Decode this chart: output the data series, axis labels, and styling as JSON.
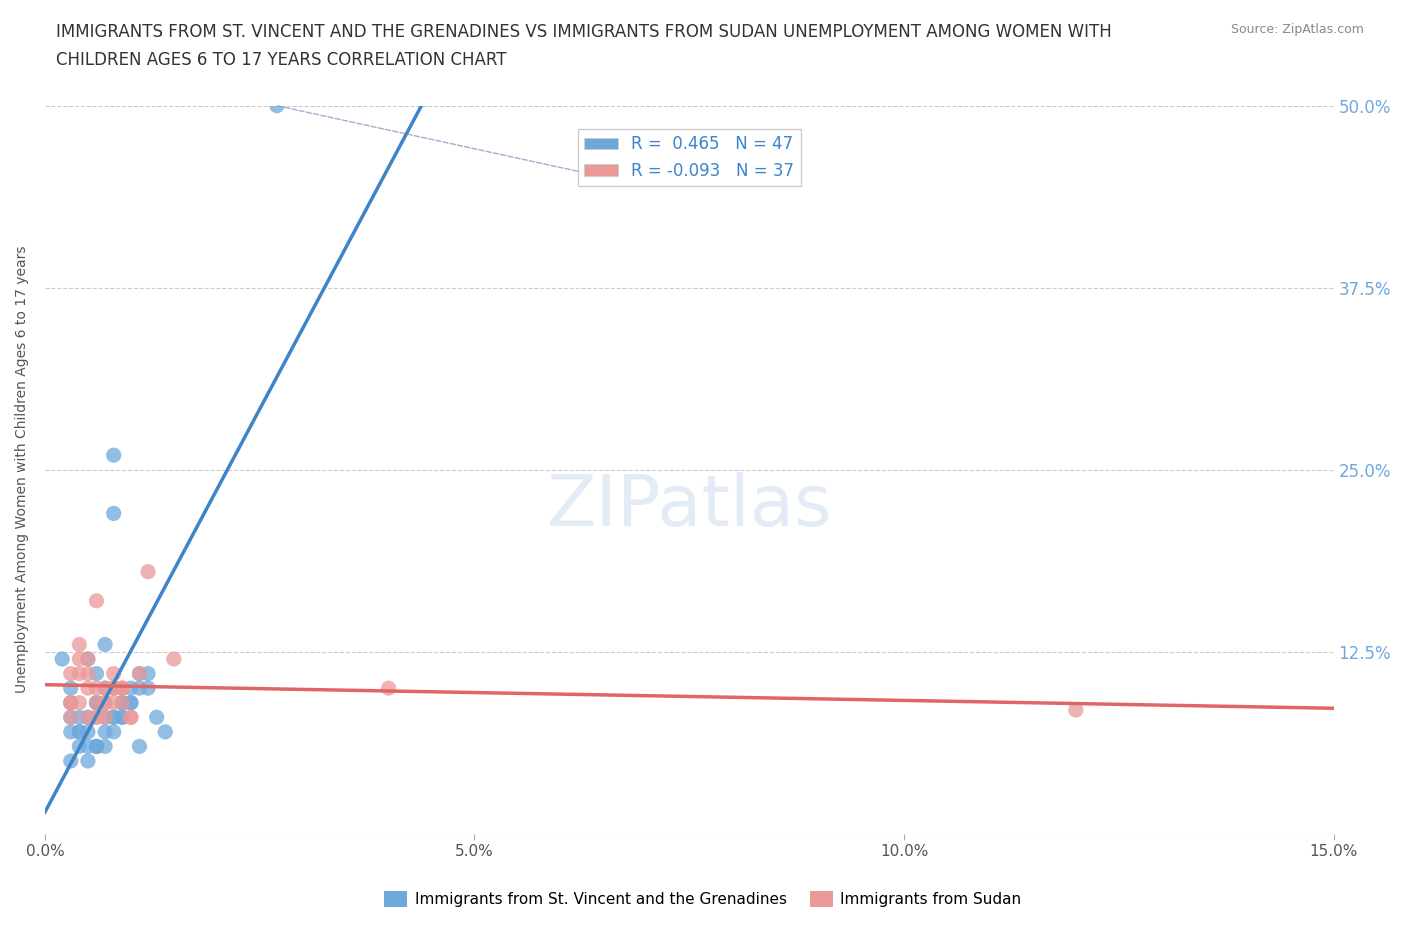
{
  "title_line1": "IMMIGRANTS FROM ST. VINCENT AND THE GRENADINES VS IMMIGRANTS FROM SUDAN UNEMPLOYMENT AMONG WOMEN WITH",
  "title_line2": "CHILDREN AGES 6 TO 17 YEARS CORRELATION CHART",
  "source": "Source: ZipAtlas.com",
  "ylabel": "Unemployment Among Women with Children Ages 6 to 17 years",
  "xlim": [
    0.0,
    0.15
  ],
  "ylim": [
    0.0,
    0.5
  ],
  "xticks": [
    0.0,
    0.05,
    0.1,
    0.15
  ],
  "xtick_labels": [
    "0.0%",
    "5.0%",
    "10.0%",
    "15.0%"
  ],
  "yticks": [
    0.0,
    0.125,
    0.25,
    0.375,
    0.5
  ],
  "ytick_labels": [
    "",
    "12.5%",
    "25.0%",
    "37.5%",
    "50.0%"
  ],
  "r_blue": 0.465,
  "n_blue": 47,
  "r_pink": -0.093,
  "n_pink": 37,
  "color_blue": "#6fa8dc",
  "color_pink": "#ea9999",
  "color_blue_line": "#3d85c8",
  "color_pink_line": "#e06666",
  "background_color": "#ffffff",
  "grid_color": "#cccccc",
  "legend_label_blue": "Immigrants from St. Vincent and the Grenadines",
  "legend_label_pink": "Immigrants from Sudan",
  "blue_scatter_x": [
    0.012,
    0.008,
    0.005,
    0.003,
    0.007,
    0.009,
    0.004,
    0.006,
    0.011,
    0.013,
    0.002,
    0.014,
    0.008,
    0.006,
    0.01,
    0.007,
    0.003,
    0.005,
    0.009,
    0.012,
    0.004,
    0.006,
    0.008,
    0.011,
    0.003,
    0.007,
    0.005,
    0.009,
    0.006,
    0.01,
    0.004,
    0.008,
    0.003,
    0.006,
    0.007,
    0.009,
    0.005,
    0.011,
    0.004,
    0.008,
    0.006,
    0.003,
    0.007,
    0.005,
    0.009,
    0.01,
    0.027
  ],
  "blue_scatter_y": [
    0.1,
    0.22,
    0.08,
    0.05,
    0.13,
    0.09,
    0.07,
    0.11,
    0.06,
    0.08,
    0.12,
    0.07,
    0.26,
    0.09,
    0.1,
    0.06,
    0.08,
    0.05,
    0.09,
    0.11,
    0.07,
    0.06,
    0.08,
    0.1,
    0.09,
    0.07,
    0.12,
    0.08,
    0.06,
    0.09,
    0.08,
    0.07,
    0.1,
    0.06,
    0.08,
    0.09,
    0.07,
    0.11,
    0.06,
    0.08,
    0.09,
    0.07,
    0.1,
    0.06,
    0.08,
    0.09,
    0.5
  ],
  "pink_scatter_x": [
    0.005,
    0.012,
    0.008,
    0.003,
    0.015,
    0.01,
    0.006,
    0.009,
    0.004,
    0.007,
    0.011,
    0.008,
    0.006,
    0.003,
    0.009,
    0.005,
    0.007,
    0.004,
    0.01,
    0.006,
    0.008,
    0.003,
    0.005,
    0.007,
    0.009,
    0.004,
    0.006,
    0.008,
    0.003,
    0.005,
    0.007,
    0.009,
    0.004,
    0.04,
    0.006,
    0.008,
    0.12
  ],
  "pink_scatter_y": [
    0.1,
    0.18,
    0.11,
    0.09,
    0.12,
    0.08,
    0.16,
    0.1,
    0.13,
    0.09,
    0.11,
    0.1,
    0.09,
    0.08,
    0.1,
    0.12,
    0.09,
    0.11,
    0.08,
    0.1,
    0.09,
    0.11,
    0.08,
    0.1,
    0.09,
    0.12,
    0.08,
    0.1,
    0.09,
    0.11,
    0.08,
    0.1,
    0.09,
    0.1,
    0.08,
    0.1,
    0.085
  ]
}
